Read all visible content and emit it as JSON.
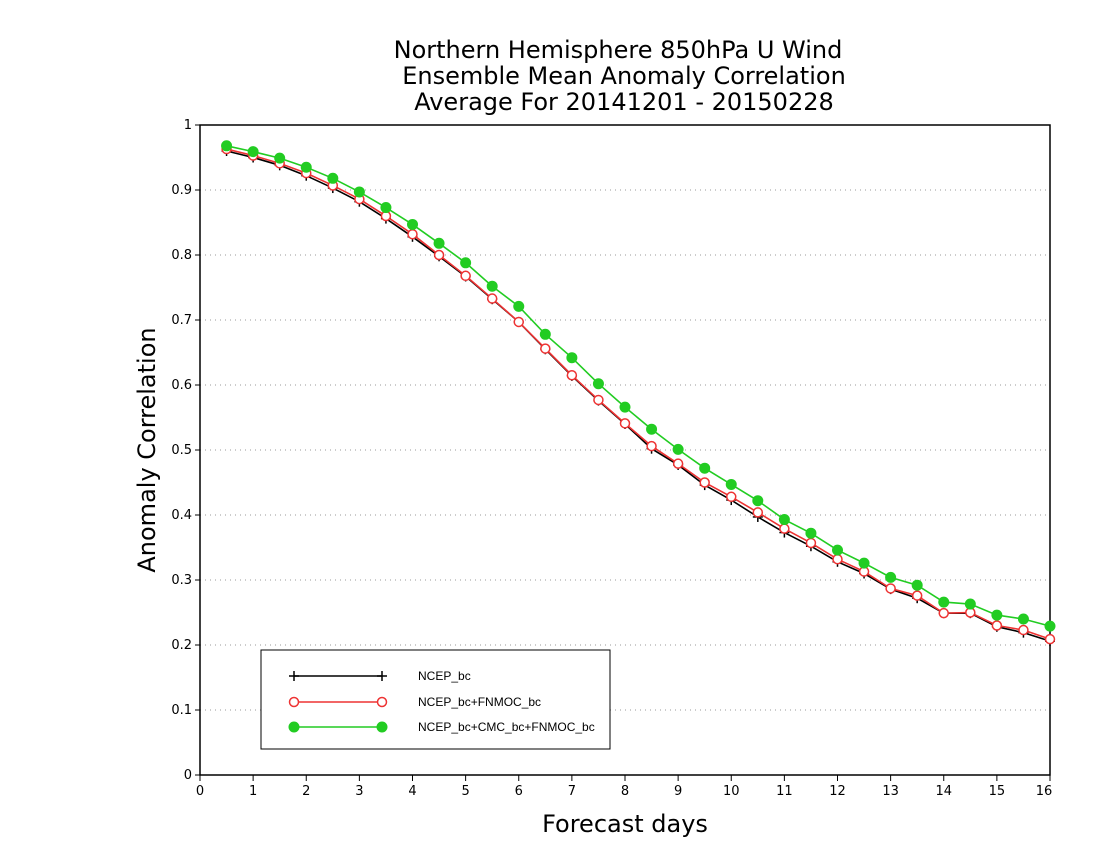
{
  "chart_data": {
    "type": "line",
    "title": [
      "Northern Hemisphere 850hPa U Wind",
      "Ensemble Mean Anomaly Correlation",
      "Average For 20141201 - 20150228"
    ],
    "xlabel": "Forecast days",
    "ylabel": "Anomaly Correlation",
    "xlim": [
      0,
      16
    ],
    "ylim": [
      0,
      1
    ],
    "xticks": [
      0,
      1,
      2,
      3,
      4,
      5,
      6,
      7,
      8,
      9,
      10,
      11,
      12,
      13,
      14,
      15,
      16
    ],
    "yticks": [
      0,
      0.1,
      0.2,
      0.3,
      0.4,
      0.5,
      0.6,
      0.7,
      0.8,
      0.9,
      1
    ],
    "ytick_labels": [
      "0",
      "0.1",
      "0.2",
      "0.3",
      "0.4",
      "0.5",
      "0.6",
      "0.7",
      "0.8",
      "0.9",
      "1"
    ],
    "grid": "horizontal-dotted",
    "legend_position": "bottom-left",
    "x": [
      0.5,
      1,
      1.5,
      2,
      2.5,
      3,
      3.5,
      4,
      4.5,
      5,
      5.5,
      6,
      6.5,
      7,
      7.5,
      8,
      8.5,
      9,
      9.5,
      10,
      10.5,
      11,
      11.5,
      12,
      12.5,
      13,
      13.5,
      14,
      14.5,
      15,
      15.5,
      16
    ],
    "series": [
      {
        "name": "NCEP_bc",
        "color": "#000000",
        "marker": "plus",
        "values": [
          0.96,
          0.95,
          0.938,
          0.922,
          0.903,
          0.882,
          0.856,
          0.828,
          0.798,
          0.767,
          0.732,
          0.697,
          0.655,
          0.614,
          0.576,
          0.54,
          0.502,
          0.477,
          0.446,
          0.423,
          0.397,
          0.373,
          0.352,
          0.328,
          0.31,
          0.286,
          0.272,
          0.249,
          0.249,
          0.228,
          0.219,
          0.206
        ]
      },
      {
        "name": "NCEP_bc+FNMOC_bc",
        "color": "#ee3333",
        "marker": "open-circle",
        "values": [
          0.963,
          0.953,
          0.941,
          0.926,
          0.907,
          0.886,
          0.86,
          0.832,
          0.8,
          0.768,
          0.733,
          0.697,
          0.656,
          0.615,
          0.577,
          0.541,
          0.506,
          0.479,
          0.45,
          0.428,
          0.404,
          0.379,
          0.357,
          0.332,
          0.313,
          0.287,
          0.276,
          0.249,
          0.25,
          0.23,
          0.223,
          0.209
        ]
      },
      {
        "name": "NCEP_bc+CMC_bc+FNMOC_bc",
        "color": "#22cc22",
        "marker": "filled-circle",
        "values": [
          0.968,
          0.959,
          0.949,
          0.935,
          0.918,
          0.897,
          0.873,
          0.847,
          0.818,
          0.788,
          0.752,
          0.721,
          0.678,
          0.642,
          0.602,
          0.566,
          0.532,
          0.501,
          0.472,
          0.447,
          0.422,
          0.393,
          0.372,
          0.346,
          0.326,
          0.304,
          0.292,
          0.266,
          0.263,
          0.246,
          0.24,
          0.229
        ]
      }
    ]
  }
}
